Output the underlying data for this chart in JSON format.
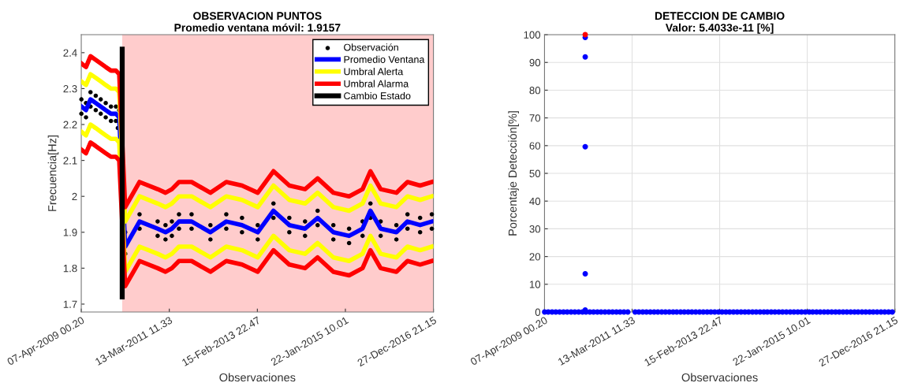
{
  "chart_data": [
    {
      "type": "line",
      "title": "OBSERVACION PUNTOS",
      "subtitle": "Promedio ventana móvil: 1.9157",
      "xlabel": "Observaciones",
      "ylabel": "Frecuencia[Hz]",
      "xlim": [
        "2009-04-07T00:20",
        "2016-12-27T21:15"
      ],
      "xticks": [
        {
          "value": "2009-04-07T00:20",
          "label": "07-Apr-2009 00.20"
        },
        {
          "value": "2011-03-13T11:33",
          "label": "13-Mar-2011 11.33"
        },
        {
          "value": "2013-02-15T22:47",
          "label": "15-Feb-2013 22.47"
        },
        {
          "value": "2015-01-22T10:01",
          "label": "22-Jan-2015 10.01"
        },
        {
          "value": "2016-12-27T21:15",
          "label": "27-Dec-2016 21.15"
        }
      ],
      "ylim": [
        1.678,
        2.45
      ],
      "yticks": [
        1.7,
        1.8,
        1.9,
        2,
        2.1,
        2.2,
        2.3,
        2.4
      ],
      "grid": false,
      "legend": "top right",
      "bands": [
        {
          "axis": "x",
          "from": "2010-03-01",
          "to": "2016-12-27T21:15",
          "color": "#ffcccc"
        }
      ],
      "x": [
        "2009-04-08",
        "2009-05-15",
        "2009-06-20",
        "2009-08-01",
        "2009-09-10",
        "2009-10-20",
        "2009-12-01",
        "2010-01-10",
        "2010-02-05",
        "2010-03-25",
        "2010-07-18",
        "2010-12-10",
        "2011-02-11",
        "2011-04-03",
        "2011-05-30",
        "2011-09-08",
        "2012-02-06",
        "2012-06-12",
        "2012-10-16",
        "2013-02-19",
        "2013-06-25",
        "2013-10-30",
        "2014-03-05",
        "2014-06-14",
        "2014-10-18",
        "2015-02-21",
        "2015-06-09",
        "2015-08-11",
        "2015-11-01",
        "2016-03-06",
        "2016-06-03",
        "2016-09-12",
        "2016-12-15"
      ],
      "series": [
        {
          "name": "Observación",
          "type": "scatter",
          "marker": "circle",
          "color": "#000000",
          "x": [
            "2009-04-08",
            "2009-05-15",
            "2009-06-20",
            "2009-08-01",
            "2009-09-10",
            "2009-10-20",
            "2009-12-01",
            "2010-01-10",
            "2010-02-05",
            "2010-03-25",
            "2010-07-18",
            "2010-12-10",
            "2011-02-11",
            "2011-04-03",
            "2011-05-30",
            "2011-09-08",
            "2012-02-06",
            "2012-06-12",
            "2012-10-16",
            "2013-02-19",
            "2013-06-25",
            "2013-10-30",
            "2014-03-05",
            "2014-06-14",
            "2014-10-18",
            "2015-02-21",
            "2015-06-09",
            "2015-08-11",
            "2015-11-01",
            "2016-03-06",
            "2016-06-03",
            "2016-09-12",
            "2016-12-15",
            "2009-04-08",
            "2009-05-15",
            "2009-06-20",
            "2009-08-01",
            "2009-09-10",
            "2009-10-20",
            "2009-12-01",
            "2010-01-10",
            "2010-01-25",
            "2010-03-25",
            "2010-07-18",
            "2010-12-10",
            "2011-02-11",
            "2011-04-03",
            "2011-05-30",
            "2011-09-08",
            "2012-02-06",
            "2012-06-12",
            "2012-10-16",
            "2013-02-19",
            "2013-06-25",
            "2013-10-30",
            "2014-03-05",
            "2014-06-14",
            "2014-10-18",
            "2015-02-21",
            "2015-06-09",
            "2015-08-11",
            "2015-11-01",
            "2016-03-06",
            "2016-06-03",
            "2016-09-12",
            "2016-12-15"
          ],
          "values": [
            2.27,
            2.26,
            2.29,
            2.28,
            2.27,
            2.26,
            2.25,
            2.25,
            2.24,
            1.9,
            1.95,
            1.93,
            1.92,
            1.93,
            1.95,
            1.95,
            1.92,
            1.95,
            1.94,
            1.92,
            1.98,
            1.94,
            1.93,
            1.96,
            1.92,
            1.91,
            1.93,
            1.98,
            1.93,
            1.92,
            1.95,
            1.94,
            1.95,
            2.23,
            2.22,
            2.25,
            2.24,
            2.23,
            2.22,
            2.21,
            2.21,
            2.19,
            1.84,
            1.91,
            1.89,
            1.88,
            1.89,
            1.91,
            1.91,
            1.88,
            1.91,
            1.9,
            1.88,
            1.94,
            1.9,
            1.89,
            1.92,
            1.88,
            1.87,
            1.89,
            1.94,
            1.89,
            1.88,
            1.91,
            1.9,
            1.91
          ]
        },
        {
          "name": "Promedio Ventana",
          "type": "line",
          "color": "#0000ff",
          "values": [
            2.25,
            2.24,
            2.27,
            2.26,
            2.25,
            2.24,
            2.23,
            2.23,
            2.22,
            1.86,
            1.93,
            1.91,
            1.9,
            1.91,
            1.93,
            1.93,
            1.9,
            1.93,
            1.92,
            1.9,
            1.96,
            1.92,
            1.91,
            1.94,
            1.9,
            1.89,
            1.91,
            1.96,
            1.91,
            1.9,
            1.93,
            1.92,
            1.93
          ]
        },
        {
          "name": "Umbral Alerta",
          "type": "line",
          "color": "#ffff00",
          "values": [
            2.32,
            2.31,
            2.34,
            2.33,
            2.32,
            2.31,
            2.3,
            2.3,
            2.29,
            1.93,
            2.0,
            1.98,
            1.97,
            1.98,
            2.0,
            2.0,
            1.97,
            2.0,
            1.99,
            1.97,
            2.03,
            1.99,
            1.98,
            2.01,
            1.97,
            1.96,
            1.98,
            2.03,
            1.98,
            1.97,
            2.0,
            1.99,
            2.0
          ]
        },
        {
          "type": "line",
          "color": "#ffff00",
          "values": [
            2.18,
            2.17,
            2.2,
            2.19,
            2.18,
            2.17,
            2.16,
            2.16,
            2.15,
            1.79,
            1.86,
            1.84,
            1.83,
            1.84,
            1.86,
            1.86,
            1.83,
            1.86,
            1.85,
            1.83,
            1.89,
            1.85,
            1.84,
            1.87,
            1.83,
            1.82,
            1.84,
            1.89,
            1.84,
            1.83,
            1.86,
            1.85,
            1.86
          ]
        },
        {
          "name": "Umbral Alarma",
          "type": "line",
          "color": "#ff0000",
          "values": [
            2.37,
            2.36,
            2.39,
            2.38,
            2.37,
            2.36,
            2.35,
            2.35,
            2.34,
            1.97,
            2.04,
            2.02,
            2.01,
            2.02,
            2.04,
            2.04,
            2.01,
            2.04,
            2.03,
            2.01,
            2.07,
            2.03,
            2.02,
            2.05,
            2.01,
            2.0,
            2.02,
            2.07,
            2.02,
            2.01,
            2.04,
            2.03,
            2.04
          ]
        },
        {
          "type": "line",
          "color": "#ff0000",
          "values": [
            2.13,
            2.12,
            2.15,
            2.14,
            2.13,
            2.12,
            2.11,
            2.11,
            2.1,
            1.75,
            1.82,
            1.8,
            1.79,
            1.8,
            1.82,
            1.82,
            1.79,
            1.82,
            1.81,
            1.79,
            1.85,
            1.81,
            1.8,
            1.83,
            1.79,
            1.78,
            1.8,
            1.85,
            1.8,
            1.79,
            1.82,
            1.81,
            1.82
          ]
        },
        {
          "name": "Cambio Estado",
          "type": "line",
          "color": "#000000",
          "x": [
            "2010-03-01",
            "2010-03-01"
          ],
          "values": [
            1.72,
            2.41
          ]
        }
      ]
    },
    {
      "type": "scatter",
      "title": "DETECCION DE CAMBIO",
      "subtitle": "Valor: 5.4033e-11 [%]",
      "xlabel": "Observaciones",
      "ylabel": "Porcentaje Detección[%]",
      "xlim": [
        "2009-04-07T00:20",
        "2016-12-27T21:15"
      ],
      "xticks": [
        {
          "value": "2009-04-07T00:20",
          "label": "07-Apr-2009 00.20"
        },
        {
          "value": "2011-03-13T11:33",
          "label": "13-Mar-2011 11.33"
        },
        {
          "value": "2013-02-15T22:47",
          "label": "15-Feb-2013 22.47"
        },
        {
          "value": "2015-01-22T10:01",
          "label": "22-Jan-2015 10.01"
        },
        {
          "value": "2016-12-27T21:15",
          "label": "27-Dec-2016 21.15"
        }
      ],
      "ylim": [
        0,
        100
      ],
      "yticks": [
        0,
        10,
        20,
        30,
        40,
        50,
        60,
        70,
        80,
        90,
        100
      ],
      "grid": true,
      "marker": "circle",
      "series": [
        {
          "color": "#0000ff",
          "x": [
            "2009-04-08",
            "2009-05-07",
            "2009-06-07",
            "2009-07-07",
            "2009-08-07",
            "2009-09-07",
            "2009-10-07",
            "2009-11-07",
            "2009-12-07",
            "2010-01-07",
            "2010-02-07",
            "2010-03-07",
            "2010-04-07",
            "2010-05-07",
            "2010-06-07",
            "2010-07-07",
            "2010-08-07",
            "2010-09-07",
            "2010-10-07",
            "2010-11-07",
            "2010-12-07",
            "2011-01-07",
            "2011-02-07",
            "2011-04-07",
            "2011-05-07",
            "2011-06-07",
            "2011-07-07",
            "2011-08-07",
            "2011-09-07",
            "2011-10-07",
            "2011-11-07",
            "2011-12-07",
            "2012-01-07",
            "2012-02-07",
            "2012-03-07",
            "2012-04-07",
            "2012-05-07",
            "2012-06-07",
            "2012-07-07",
            "2012-08-07",
            "2012-09-07",
            "2012-10-07",
            "2012-11-07",
            "2012-12-07",
            "2013-01-07",
            "2013-02-07",
            "2013-03-07",
            "2013-04-07",
            "2013-05-07",
            "2013-06-07",
            "2013-07-07",
            "2013-08-07",
            "2013-09-07",
            "2013-10-07",
            "2013-11-07",
            "2013-12-07",
            "2014-01-07",
            "2014-02-07",
            "2014-03-07",
            "2014-04-07",
            "2014-05-07",
            "2014-06-07",
            "2014-07-07",
            "2014-08-07",
            "2014-09-07",
            "2014-10-07",
            "2014-11-07",
            "2014-12-07",
            "2015-01-07",
            "2015-02-07",
            "2015-03-07",
            "2015-04-07",
            "2015-05-07",
            "2015-06-07",
            "2015-07-07",
            "2015-08-07",
            "2015-09-07",
            "2015-10-07",
            "2015-11-07",
            "2015-12-07",
            "2016-01-07",
            "2016-02-07",
            "2016-03-07",
            "2016-04-07",
            "2016-05-07",
            "2016-06-07",
            "2016-07-07",
            "2016-08-07",
            "2016-09-07",
            "2016-10-07",
            "2016-11-07",
            "2016-12-07",
            "2010-03-01",
            "2010-03-01",
            "2010-03-01",
            "2010-03-01",
            "2010-03-01"
          ],
          "values": [
            0,
            0,
            0,
            0,
            0,
            0,
            0,
            0,
            0,
            0,
            0,
            0,
            0,
            0,
            0,
            0,
            0,
            0,
            0,
            0,
            0,
            0,
            0,
            0,
            0,
            0,
            0,
            0,
            0,
            0,
            0,
            0,
            0,
            0,
            0,
            0,
            0,
            0,
            0,
            0,
            0,
            0,
            0,
            0,
            0,
            0,
            0,
            0,
            0,
            0,
            0,
            0,
            0,
            0,
            0,
            0,
            0,
            0,
            0,
            0,
            0,
            0,
            0,
            0,
            0,
            0,
            0,
            0,
            0,
            0,
            0,
            0,
            0,
            0,
            0,
            0,
            0,
            0,
            0,
            0,
            0,
            0,
            0,
            0,
            0,
            0,
            0,
            0,
            0,
            0,
            0,
            0,
            99,
            92,
            59.6,
            13.8,
            0.7
          ]
        },
        {
          "color": "#ff0000",
          "x": [
            "2010-03-01"
          ],
          "values": [
            100
          ]
        }
      ]
    }
  ]
}
